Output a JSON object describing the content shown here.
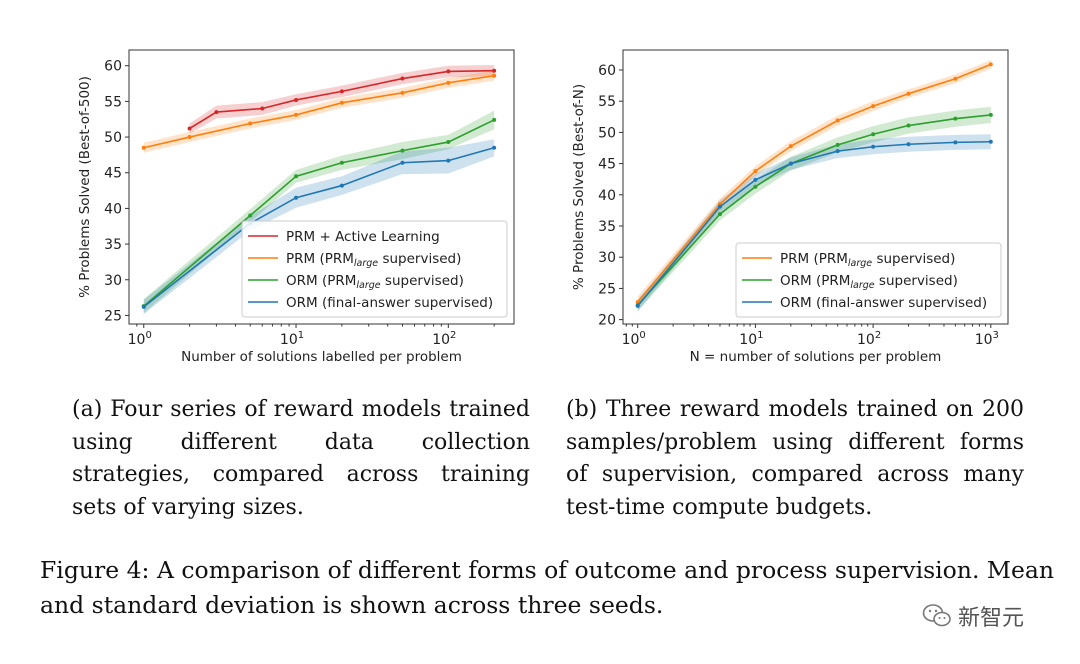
{
  "colors": {
    "red": "#d62728",
    "orange": "#ff7f0e",
    "green": "#2ca02c",
    "blue": "#1f77b4"
  },
  "chart_data": [
    {
      "type": "line",
      "xscale": "log",
      "ylabel": "% Problems Solved (Best-of-500)",
      "xlabel": "Number of solutions labelled per problem",
      "xlim": [
        0.8,
        270
      ],
      "ylim": [
        23.8,
        62.2
      ],
      "yticks": [
        25,
        30,
        35,
        40,
        45,
        50,
        55,
        60
      ],
      "xticks": [
        {
          "value": 1,
          "base": "10",
          "exp": "0"
        },
        {
          "value": 10,
          "base": "10",
          "exp": "1"
        },
        {
          "value": 100,
          "base": "10",
          "exp": "2"
        }
      ],
      "legend_position": "lower-right",
      "series": [
        {
          "name": "PRM + Active Learning",
          "pre": "PRM + Active Learning",
          "sub": "",
          "post": "",
          "color": "red",
          "x": [
            2,
            3,
            6,
            10,
            20,
            50,
            100,
            200
          ],
          "y": [
            51.2,
            53.5,
            54.0,
            55.2,
            56.4,
            58.2,
            59.2,
            59.3
          ],
          "std": [
            0.7,
            0.9,
            0.9,
            0.8,
            0.8,
            0.8,
            0.8,
            0.8
          ]
        },
        {
          "name": "PRM (PRM_large supervised)",
          "pre": "PRM (PRM",
          "sub": "large",
          "post": " supervised)",
          "color": "orange",
          "x": [
            1,
            2,
            5,
            10,
            20,
            50,
            100,
            200
          ],
          "y": [
            48.5,
            50.0,
            51.9,
            53.1,
            54.8,
            56.2,
            57.6,
            58.6
          ],
          "std": [
            0.7,
            0.7,
            0.7,
            0.7,
            0.7,
            0.7,
            0.7,
            0.7
          ]
        },
        {
          "name": "ORM (PRM_large supervised)",
          "pre": "ORM (PRM",
          "sub": "large",
          "post": " supervised)",
          "color": "green",
          "x": [
            1,
            5,
            10,
            20,
            50,
            100,
            200
          ],
          "y": [
            26.3,
            39.0,
            44.5,
            46.4,
            48.1,
            49.3,
            52.4
          ],
          "std": [
            1.0,
            0.9,
            0.9,
            1.0,
            1.2,
            1.0,
            1.3
          ]
        },
        {
          "name": "ORM (final-answer supervised)",
          "pre": "ORM (final-answer supervised)",
          "sub": "",
          "post": "",
          "color": "blue",
          "x": [
            1,
            5,
            10,
            20,
            50,
            100,
            200
          ],
          "y": [
            26.2,
            37.9,
            41.5,
            43.2,
            46.4,
            46.7,
            48.5
          ],
          "std": [
            1.0,
            1.0,
            1.4,
            1.3,
            1.6,
            1.8,
            1.2
          ]
        }
      ]
    },
    {
      "type": "line",
      "xscale": "log",
      "ylabel": "% Problems Solved (Best-of-N)",
      "xlabel": "N = number of solutions per problem",
      "xlim": [
        0.75,
        1400
      ],
      "ylim": [
        19.3,
        63.2
      ],
      "yticks": [
        20,
        25,
        30,
        35,
        40,
        45,
        50,
        55,
        60
      ],
      "xticks": [
        {
          "value": 1,
          "base": "10",
          "exp": "0"
        },
        {
          "value": 10,
          "base": "10",
          "exp": "1"
        },
        {
          "value": 100,
          "base": "10",
          "exp": "2"
        },
        {
          "value": 1000,
          "base": "10",
          "exp": "3"
        }
      ],
      "legend_position": "lower-right",
      "series": [
        {
          "name": "PRM (PRM_large supervised)",
          "pre": "PRM (PRM",
          "sub": "large",
          "post": " supervised)",
          "color": "orange",
          "x": [
            1,
            5,
            10,
            20,
            50,
            100,
            200,
            500,
            1000
          ],
          "y": [
            22.8,
            38.5,
            43.8,
            47.8,
            51.9,
            54.2,
            56.2,
            58.6,
            60.9
          ],
          "std": [
            0.9,
            0.9,
            0.8,
            0.8,
            0.8,
            0.8,
            0.7,
            0.7,
            0.7
          ]
        },
        {
          "name": "ORM (PRM_large supervised)",
          "pre": "ORM (PRM",
          "sub": "large",
          "post": " supervised)",
          "color": "green",
          "x": [
            1,
            5,
            10,
            20,
            50,
            100,
            200,
            500,
            1000
          ],
          "y": [
            22.3,
            36.9,
            41.3,
            45.0,
            48.0,
            49.7,
            51.1,
            52.2,
            52.8
          ],
          "std": [
            0.9,
            1.0,
            1.1,
            1.1,
            1.2,
            1.3,
            1.3,
            1.3,
            1.3
          ]
        },
        {
          "name": "ORM (final-answer supervised)",
          "pre": "ORM (final-answer supervised)",
          "sub": "",
          "post": "",
          "color": "blue",
          "x": [
            1,
            5,
            10,
            20,
            50,
            100,
            200,
            500,
            1000
          ],
          "y": [
            22.2,
            38.1,
            42.4,
            45.0,
            47.0,
            47.7,
            48.1,
            48.4,
            48.5
          ],
          "std": [
            0.9,
            1.0,
            1.0,
            1.0,
            1.1,
            1.2,
            1.2,
            1.2,
            1.2
          ]
        }
      ]
    }
  ],
  "captions": {
    "a": "(a) Four series of reward models trained using different data collection strategies, compared across training sets of varying sizes.",
    "b": "(b) Three reward models trained on 200 samples/problem using different forms of supervision, compared across many test-time compute budgets."
  },
  "figure_caption": "Figure 4: A comparison of different forms of outcome and process supervision. Mean and standard deviation is shown across three seeds.",
  "watermark": {
    "icon": "wechat-icon",
    "text": "新智元"
  }
}
